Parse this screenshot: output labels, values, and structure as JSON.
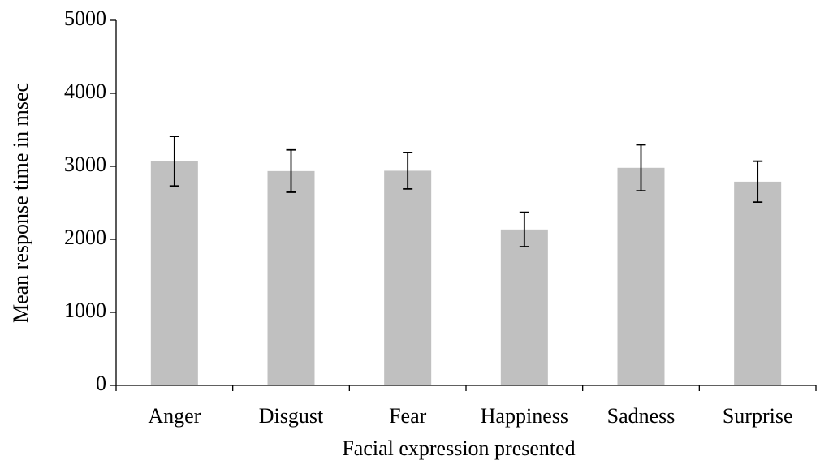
{
  "chart_data": {
    "type": "bar",
    "x_label": "Facial expression presented",
    "y_label": "Mean response time in msec",
    "categories": [
      "Anger",
      "Disgust",
      "Fear",
      "Happiness",
      "Sadness",
      "Surprise"
    ],
    "values": [
      3070,
      2935,
      2940,
      2135,
      2980,
      2790
    ],
    "errors": [
      340,
      290,
      250,
      235,
      315,
      280
    ],
    "color": "#c0c0c0",
    "ylim": [
      0,
      5000
    ],
    "yticks": [
      0,
      1000,
      2000,
      3000,
      4000,
      5000
    ],
    "grid": false
  }
}
